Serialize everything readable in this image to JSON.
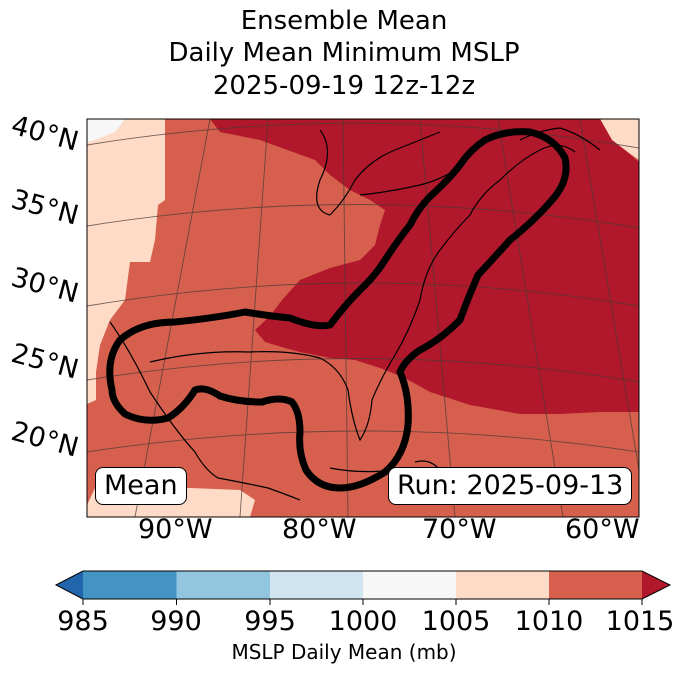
{
  "title": {
    "line1": "Ensemble Mean",
    "line2": "Daily Mean Minimum MSLP",
    "line3": "2025-09-19 12z-12z"
  },
  "map": {
    "lat_labels": [
      "40°N",
      "35°N",
      "30°N",
      "25°N",
      "20°N"
    ],
    "lon_labels": [
      "90°W",
      "80°W",
      "70°W",
      "60°W"
    ],
    "mean_label": "Mean",
    "run_label": "Run: 2025-09-13"
  },
  "colorbar": {
    "ticks": [
      "985",
      "990",
      "995",
      "1000",
      "1005",
      "1010",
      "1015"
    ],
    "colors": [
      "#2166ac",
      "#4393c3",
      "#92c5de",
      "#d1e5f0",
      "#f7f7f7",
      "#fddbc7",
      "#d6604d",
      "#b2182b"
    ],
    "label": "MSLP Daily Mean (mb)"
  }
}
